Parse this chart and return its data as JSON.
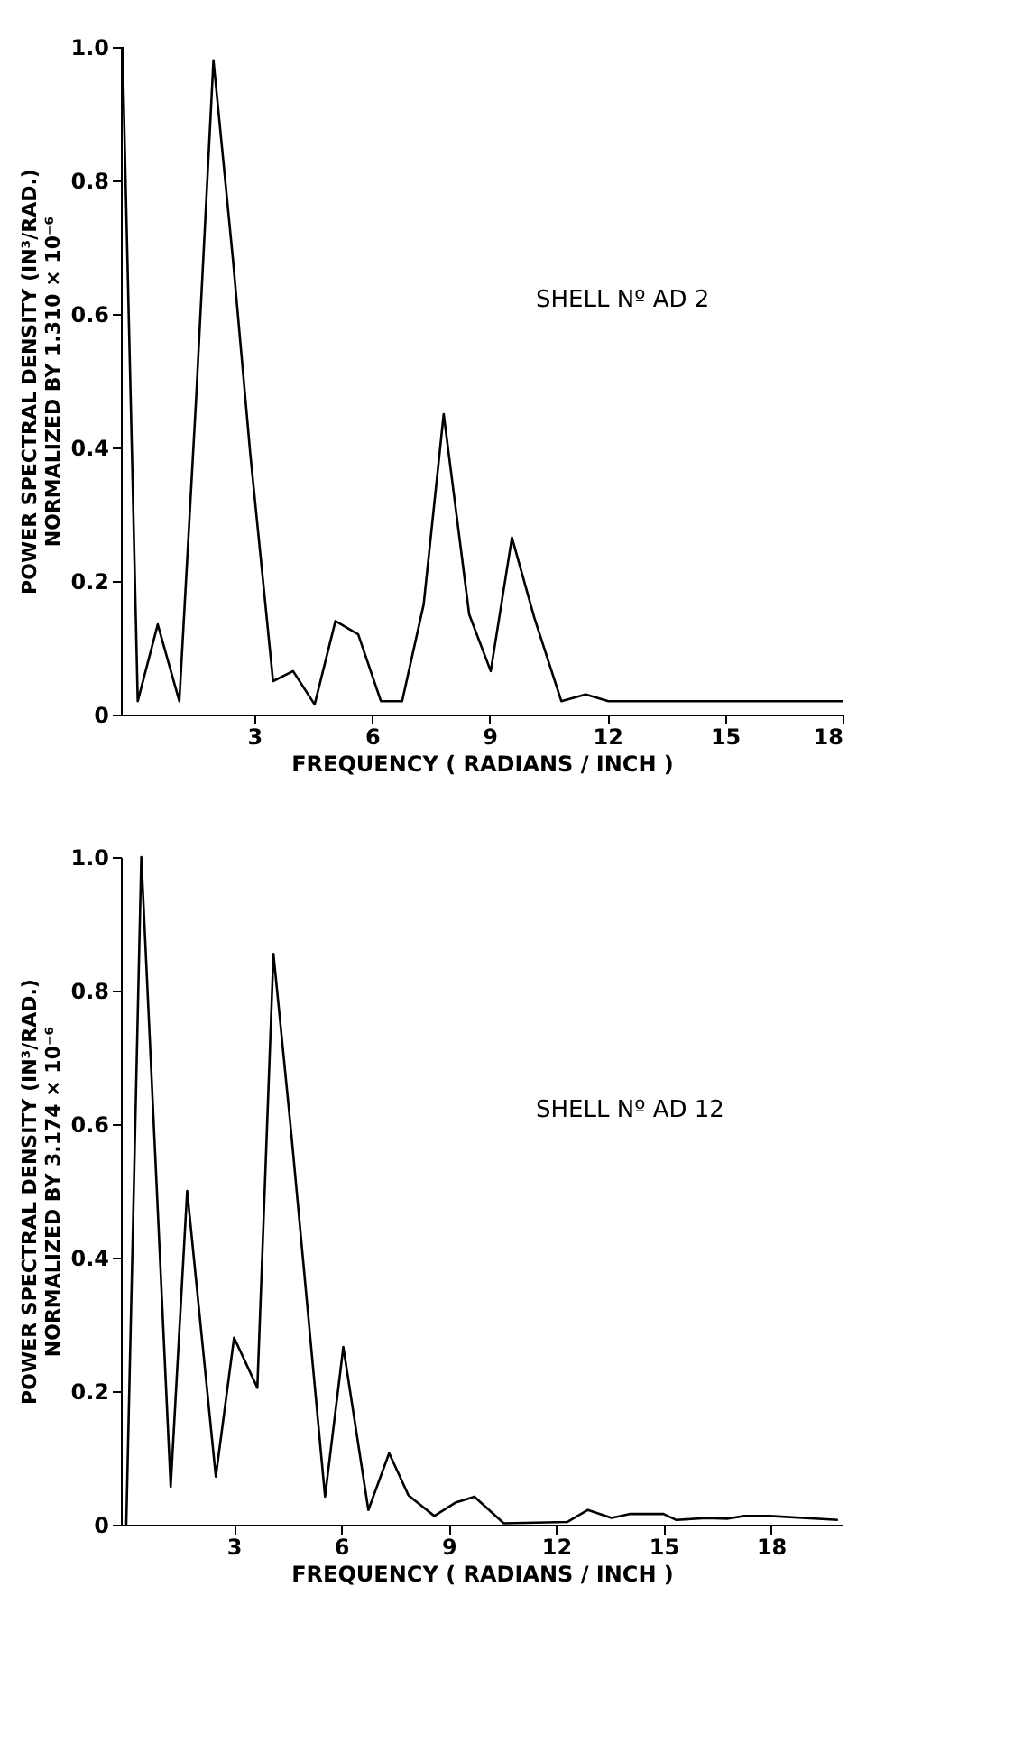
{
  "chart_data": [
    {
      "type": "line",
      "xlabel": "FREQUENCY  ( RADIANS / INCH )",
      "ylabel": "POWER SPECTRAL DENSITY (IN³/RAD.)\nNORMALIZED BY 1.310 × 10⁻⁶",
      "annotations": [
        "SHELL Nº AD 2"
      ],
      "xlim": [
        -0.4,
        18
      ],
      "xticks": [
        3,
        6,
        9,
        12,
        15,
        18
      ],
      "ylim": [
        0,
        1.0
      ],
      "yticks": [
        0,
        0.2,
        0.4,
        0.6,
        0.8,
        {
          "value": 1.0,
          "label": "1.0"
        }
      ],
      "grid": false,
      "legend": false,
      "marker": "none",
      "line_style": "solid",
      "series": [
        {
          "color": "#000000",
          "x": [
            -0.36,
            0.03,
            0.54,
            1.09,
            1.52,
            1.96,
            2.46,
            2.9,
            3.48,
            3.99,
            4.54,
            5.07,
            5.65,
            6.23,
            6.77,
            7.32,
            7.83,
            8.48,
            9.03,
            9.57,
            10.14,
            10.83,
            11.45,
            12.03,
            18.0
          ],
          "values": [
            1.0,
            0.02,
            0.135,
            0.02,
            0.475,
            0.98,
            0.68,
            0.39,
            0.05,
            0.065,
            0.015,
            0.14,
            0.12,
            0.02,
            0.02,
            0.165,
            0.45,
            0.15,
            0.065,
            0.265,
            0.145,
            0.02,
            0.03,
            0.02,
            0.02
          ]
        }
      ]
    },
    {
      "type": "line",
      "xlabel": "FREQUENCY  ( RADIANS / INCH )",
      "ylabel": "POWER SPECTRAL DENSITY (IN³/RAD.)\nNORMALIZED BY 3.174 × 10⁻⁶",
      "annotations": [
        "SHELL Nº AD 12"
      ],
      "xlim": [
        -0.15,
        20
      ],
      "xticks": [
        3,
        6,
        9,
        12,
        15,
        18
      ],
      "ylim": [
        0,
        1.0
      ],
      "yticks": [
        0,
        0.2,
        0.4,
        0.6,
        0.8,
        {
          "value": 1.0,
          "label": "1.0"
        }
      ],
      "grid": false,
      "legend": false,
      "marker": "none",
      "line_style": "solid",
      "series": [
        {
          "color": "#000000",
          "x": [
            0.0,
            0.42,
            1.24,
            1.7,
            2.5,
            3.01,
            3.66,
            4.11,
            4.61,
            5.55,
            6.06,
            6.76,
            7.34,
            7.88,
            8.6,
            9.19,
            9.72,
            10.54,
            12.31,
            12.89,
            13.55,
            14.05,
            15.0,
            15.36,
            16.2,
            16.8,
            17.25,
            17.98,
            19.87
          ],
          "values": [
            0.0,
            1.0,
            0.057,
            0.5,
            0.072,
            0.28,
            0.205,
            0.855,
            0.585,
            0.042,
            0.266,
            0.022,
            0.107,
            0.044,
            0.013,
            0.033,
            0.042,
            0.002,
            0.004,
            0.022,
            0.01,
            0.016,
            0.016,
            0.007,
            0.01,
            0.009,
            0.013,
            0.013,
            0.007
          ]
        }
      ]
    }
  ]
}
